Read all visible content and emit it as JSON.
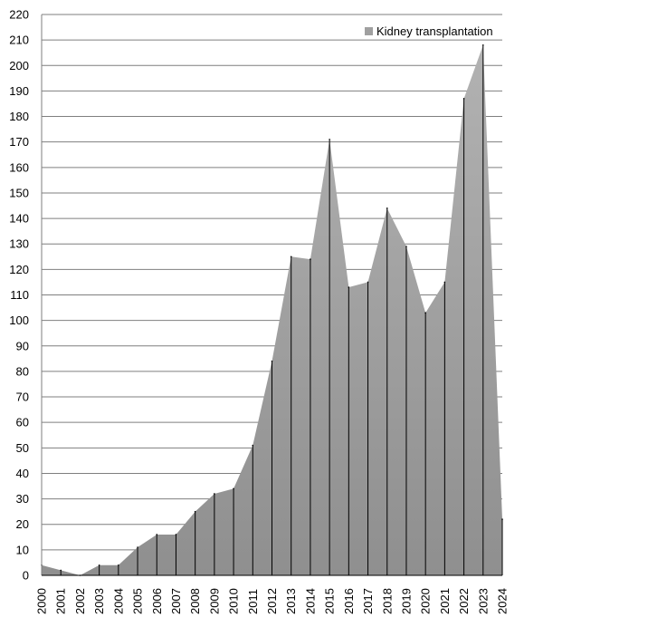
{
  "chart_data": {
    "type": "area",
    "x": [
      "2000",
      "2001",
      "2002",
      "2003",
      "2004",
      "2005",
      "2006",
      "2007",
      "2008",
      "2009",
      "2010",
      "2011",
      "2012",
      "2013",
      "2014",
      "2015",
      "2016",
      "2017",
      "2018",
      "2019",
      "2020",
      "2021",
      "2022",
      "2023",
      "2024"
    ],
    "series": [
      {
        "name": "Kidney transplantation",
        "values": [
          4,
          2,
          0,
          4,
          4,
          11,
          16,
          16,
          25,
          32,
          34,
          51,
          84,
          125,
          124,
          171,
          113,
          115,
          144,
          129,
          103,
          115,
          187,
          208,
          22
        ],
        "color": "#a0a0a0"
      }
    ],
    "ylim": [
      0,
      220
    ],
    "yticks": [
      0,
      10,
      20,
      30,
      40,
      50,
      60,
      70,
      80,
      90,
      100,
      110,
      120,
      130,
      140,
      150,
      160,
      170,
      180,
      190,
      200,
      210,
      220
    ],
    "grid": true,
    "legend_position": "top-right",
    "title": "",
    "xlabel": "",
    "ylabel": ""
  }
}
